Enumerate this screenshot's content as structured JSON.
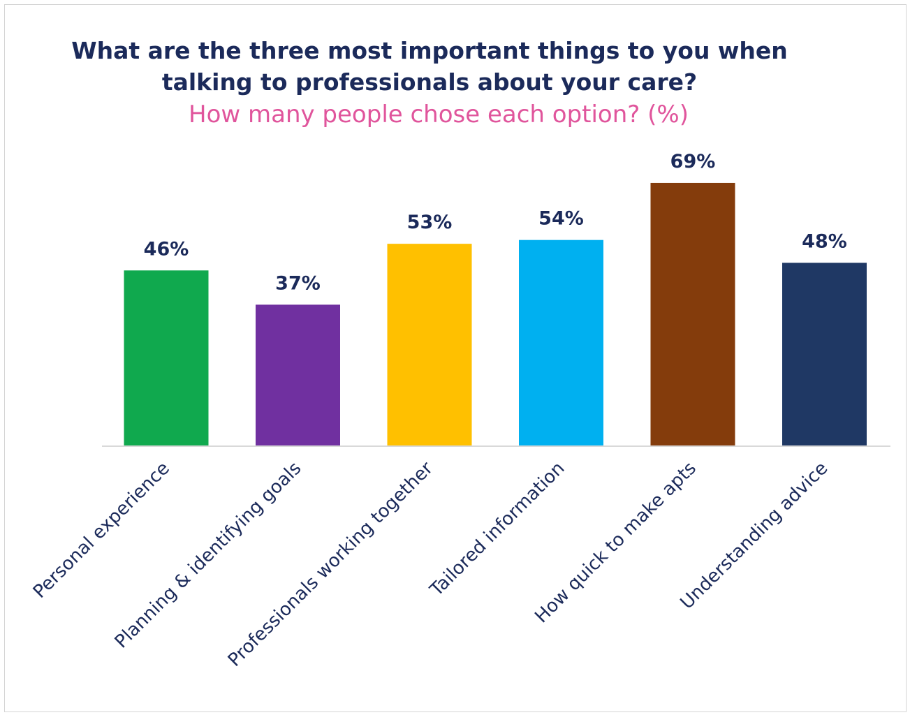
{
  "chart_data": {
    "type": "bar",
    "title_line1": "What are the three most important things to you when",
    "title_line2": "talking to professionals about your care?",
    "subtitle": "How many people chose each option? (%)",
    "categories": [
      "Personal experience",
      "Planning & identifying goals",
      "Professionals working together",
      "Tailored information",
      "How quick to make apts",
      "Understanding advice"
    ],
    "values": [
      46,
      37,
      53,
      54,
      69,
      48
    ],
    "value_labels": [
      "46%",
      "37%",
      "53%",
      "54%",
      "69%",
      "48%"
    ],
    "colors": [
      "#10a94e",
      "#7030a0",
      "#ffc000",
      "#00b0f0",
      "#843c0c",
      "#1f3864"
    ],
    "xlabel": "",
    "ylabel": "",
    "grid": false,
    "legend": "none"
  }
}
